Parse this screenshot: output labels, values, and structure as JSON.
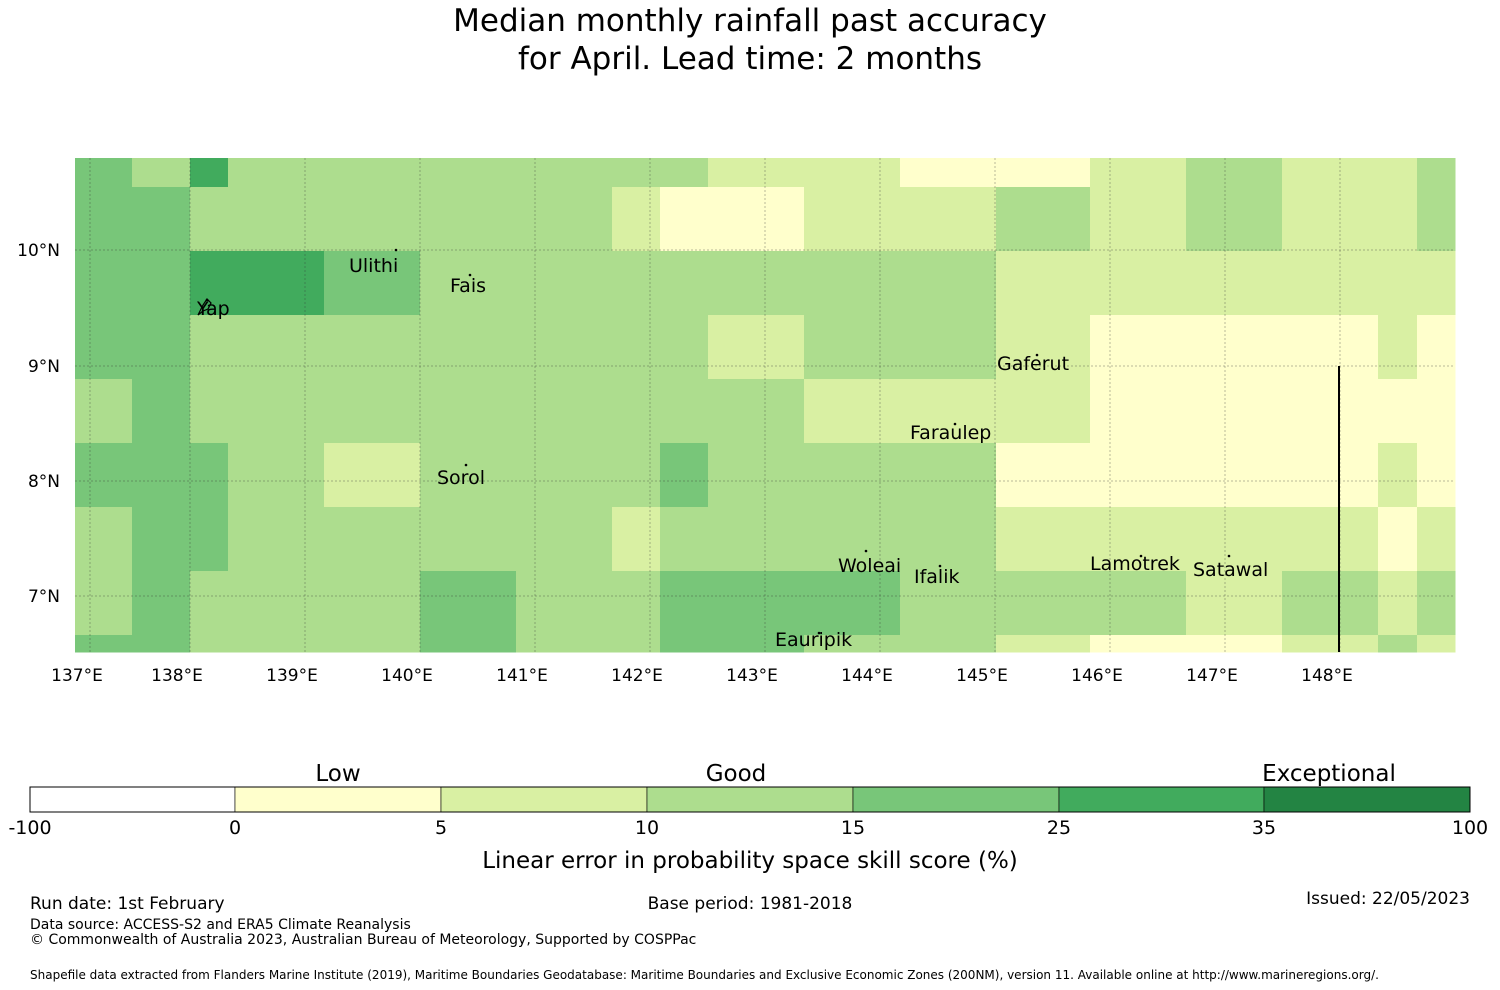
{
  "title": {
    "line1": "Median monthly rainfall past accuracy",
    "line2": "for April. Lead time: 2 months"
  },
  "map": {
    "lat_ticks": [
      "10°N",
      "9°N",
      "8°N",
      "7°N"
    ],
    "lon_ticks": [
      "137°E",
      "138°E",
      "139°E",
      "140°E",
      "141°E",
      "142°E",
      "143°E",
      "144°E",
      "145°E",
      "146°E",
      "147°E",
      "148°E"
    ],
    "islands": [
      {
        "name": "Ulithi"
      },
      {
        "name": "Fais"
      },
      {
        "name": "Yap"
      },
      {
        "name": "Gaferut"
      },
      {
        "name": "Faraulep"
      },
      {
        "name": "Sorol"
      },
      {
        "name": "Woleai"
      },
      {
        "name": "Ifalik"
      },
      {
        "name": "Lamotrek"
      },
      {
        "name": "Satawal"
      },
      {
        "name": "Eauripik"
      }
    ],
    "grid_levels": [
      [
        4,
        3,
        5,
        3,
        3,
        3,
        3,
        3,
        3,
        2,
        2,
        1,
        1,
        2,
        3,
        2,
        2,
        3
      ],
      [
        4,
        4,
        3,
        3,
        3,
        3,
        3,
        2,
        1,
        1,
        2,
        2,
        3,
        2,
        3,
        2,
        2,
        3
      ],
      [
        4,
        4,
        5,
        5,
        4,
        3,
        3,
        3,
        3,
        3,
        3,
        3,
        2,
        2,
        2,
        2,
        2,
        2
      ],
      [
        4,
        4,
        3,
        3,
        3,
        3,
        3,
        3,
        3,
        2,
        3,
        3,
        2,
        1,
        1,
        1,
        2,
        1
      ],
      [
        3,
        4,
        3,
        3,
        3,
        3,
        3,
        3,
        3,
        3,
        2,
        2,
        2,
        1,
        1,
        1,
        1,
        1
      ],
      [
        4,
        4,
        4,
        3,
        2,
        3,
        3,
        3,
        4,
        3,
        3,
        3,
        1,
        1,
        1,
        1,
        2,
        1
      ],
      [
        3,
        4,
        4,
        3,
        3,
        3,
        3,
        2,
        3,
        3,
        3,
        3,
        2,
        2,
        2,
        2,
        1,
        2
      ],
      [
        3,
        4,
        3,
        3,
        3,
        4,
        3,
        3,
        4,
        4,
        4,
        3,
        3,
        3,
        2,
        3,
        2,
        3
      ],
      [
        4,
        4,
        3,
        3,
        3,
        4,
        3,
        3,
        4,
        4,
        3,
        3,
        2,
        1,
        1,
        2,
        3,
        2
      ]
    ]
  },
  "colorbar": {
    "categories": [
      "Low",
      "Good",
      "Exceptional"
    ],
    "tick_labels": [
      "-100",
      "0",
      "5",
      "10",
      "15",
      "25",
      "35",
      "100"
    ],
    "colors": [
      "#ffffff",
      "#ffffcc",
      "#d9f0a3",
      "#addd8e",
      "#78c679",
      "#41ab5d",
      "#238443"
    ],
    "label": "Linear error in probability space skill score (%)"
  },
  "footer": {
    "run_date": "Run date: 1st February",
    "base_period": "Base period: 1981-2018",
    "issued": "Issued: 22/05/2023",
    "data_source": "Data source: ACCESS-S2 and ERA5 Climate Reanalysis",
    "copyright": "© Commonwealth of Australia 2023, Australian Bureau of Meteorology, Supported by COSPPac",
    "shapefile": "Shapefile data extracted from Flanders Marine Institute (2019), Maritime Boundaries Geodatabase: Maritime Boundaries and Exclusive Economic Zones (200NM), version 11. Available online at http://www.marineregions.org/."
  }
}
